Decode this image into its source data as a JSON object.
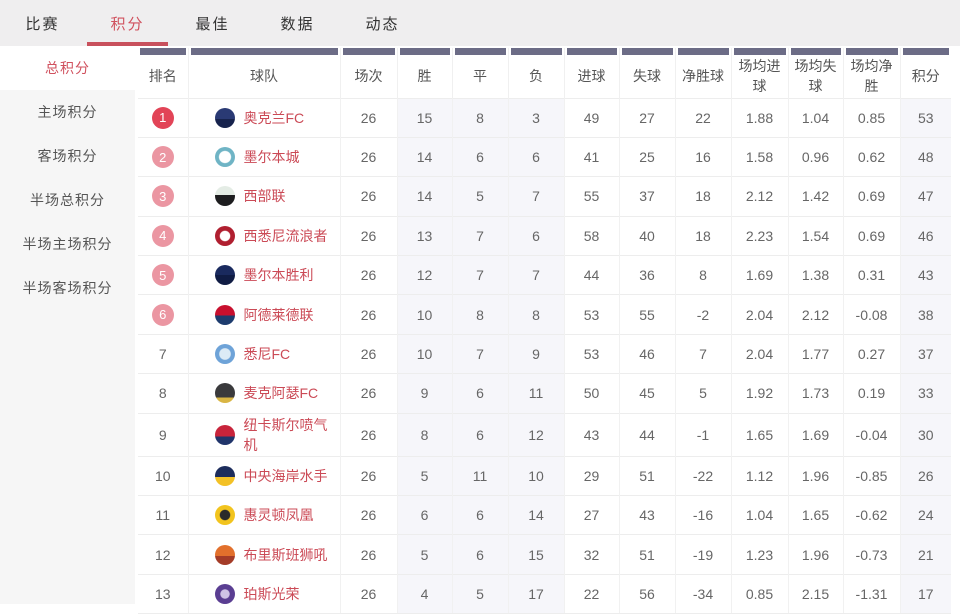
{
  "colors": {
    "accent_red": "#d0515e",
    "underline_red": "#c8505c",
    "badge_solid": "#e24457",
    "badge_light": "#eb96a2",
    "team_name_red": "#cb4a56",
    "header_bar_purple": "#6c6c86",
    "nav_bg": "#efeeef",
    "sidebar_bg": "#f6f6f6",
    "tint_column_bg": "#f6f6fa"
  },
  "nav": {
    "tabs": [
      {
        "id": "matches",
        "label": "比赛",
        "active": false
      },
      {
        "id": "standings",
        "label": "积分",
        "active": true
      },
      {
        "id": "best",
        "label": "最佳",
        "active": false
      },
      {
        "id": "stats",
        "label": "数据",
        "active": false
      },
      {
        "id": "news",
        "label": "动态",
        "active": false
      }
    ]
  },
  "sidebar": {
    "items": [
      {
        "id": "total-points",
        "label": "总积分",
        "active": true
      },
      {
        "id": "home-points",
        "label": "主场积分",
        "active": false
      },
      {
        "id": "away-points",
        "label": "客场积分",
        "active": false
      },
      {
        "id": "half-total-points",
        "label": "半场总积分",
        "active": false
      },
      {
        "id": "half-home-points",
        "label": "半场主场积分",
        "active": false
      },
      {
        "id": "half-away-points",
        "label": "半场客场积分",
        "active": false
      }
    ]
  },
  "table": {
    "columns": [
      "排名",
      "球队",
      "场次",
      "胜",
      "平",
      "负",
      "进球",
      "失球",
      "净胜球",
      "场均进球",
      "场均失球",
      "场均净胜",
      "积分"
    ],
    "rows": [
      {
        "rank": "1",
        "badge": "solid",
        "team": "奥克兰FC",
        "logo": {
          "type": "split",
          "c1": "#2a3a74",
          "c2": "#17234d",
          "pct": 55
        },
        "stats": [
          "26",
          "15",
          "8",
          "3",
          "49",
          "27",
          "22",
          "1.88",
          "1.04",
          "0.85",
          "53"
        ]
      },
      {
        "rank": "2",
        "badge": "light",
        "team": "墨尔本城",
        "logo": {
          "type": "radial",
          "c1": "#ffffff",
          "c2": "#6fb4c5",
          "pct": 40
        },
        "stats": [
          "26",
          "14",
          "6",
          "6",
          "41",
          "25",
          "16",
          "1.58",
          "0.96",
          "0.62",
          "48"
        ]
      },
      {
        "rank": "3",
        "badge": "light",
        "team": "西部联",
        "logo": {
          "type": "split",
          "c1": "#e4ece5",
          "c2": "#1d1d1f",
          "pct": 45
        },
        "stats": [
          "26",
          "14",
          "5",
          "7",
          "55",
          "37",
          "18",
          "2.12",
          "1.42",
          "0.69",
          "47"
        ]
      },
      {
        "rank": "4",
        "badge": "light",
        "team": "西悉尼流浪者",
        "logo": {
          "type": "radial",
          "c1": "#ffffff",
          "c2": "#b01f30",
          "pct": 34
        },
        "stats": [
          "26",
          "13",
          "7",
          "6",
          "58",
          "40",
          "18",
          "2.23",
          "1.54",
          "0.69",
          "46"
        ]
      },
      {
        "rank": "5",
        "badge": "light",
        "team": "墨尔本胜利",
        "logo": {
          "type": "split",
          "c1": "#1a2a5e",
          "c2": "#101c44",
          "pct": 50
        },
        "stats": [
          "26",
          "12",
          "7",
          "7",
          "44",
          "36",
          "8",
          "1.69",
          "1.38",
          "0.31",
          "43"
        ]
      },
      {
        "rank": "6",
        "badge": "light",
        "team": "阿德莱德联",
        "logo": {
          "type": "split",
          "c1": "#c8102e",
          "c2": "#1d3c6e",
          "pct": 52
        },
        "stats": [
          "26",
          "10",
          "8",
          "8",
          "53",
          "55",
          "-2",
          "2.04",
          "2.12",
          "-0.08",
          "38"
        ]
      },
      {
        "rank": "7",
        "badge": "none",
        "team": "悉尼FC",
        "logo": {
          "type": "radial",
          "c1": "#dcebf6",
          "c2": "#6ea3d8",
          "pct": 38
        },
        "stats": [
          "26",
          "10",
          "7",
          "9",
          "53",
          "46",
          "7",
          "2.04",
          "1.77",
          "0.27",
          "37"
        ]
      },
      {
        "rank": "8",
        "badge": "none",
        "team": "麦克阿瑟FC",
        "logo": {
          "type": "split",
          "c1": "#3a3a3c",
          "c2": "#d9b544",
          "pct": 72
        },
        "stats": [
          "26",
          "9",
          "6",
          "11",
          "50",
          "45",
          "5",
          "1.92",
          "1.73",
          "0.19",
          "33"
        ]
      },
      {
        "rank": "9",
        "badge": "none",
        "team": "纽卡斯尔喷气机",
        "logo": {
          "type": "split",
          "c1": "#c8243b",
          "c2": "#20356b",
          "pct": 58
        },
        "stats": [
          "26",
          "8",
          "6",
          "12",
          "43",
          "44",
          "-1",
          "1.65",
          "1.69",
          "-0.04",
          "30"
        ]
      },
      {
        "rank": "10",
        "badge": "none",
        "team": "中央海岸水手",
        "logo": {
          "type": "split",
          "c1": "#1d2d5c",
          "c2": "#f3c126",
          "pct": 56
        },
        "stats": [
          "26",
          "5",
          "11",
          "10",
          "29",
          "51",
          "-22",
          "1.12",
          "1.96",
          "-0.85",
          "26"
        ]
      },
      {
        "rank": "11",
        "badge": "none",
        "team": "惠灵顿凤凰",
        "logo": {
          "type": "radial",
          "c1": "#2a2a2a",
          "c2": "#f2c41e",
          "pct": 34
        },
        "stats": [
          "26",
          "6",
          "6",
          "14",
          "27",
          "43",
          "-16",
          "1.04",
          "1.65",
          "-0.62",
          "24"
        ]
      },
      {
        "rank": "12",
        "badge": "none",
        "team": "布里斯班狮吼",
        "logo": {
          "type": "split",
          "c1": "#e2702c",
          "c2": "#a43c28",
          "pct": 55
        },
        "stats": [
          "26",
          "5",
          "6",
          "15",
          "32",
          "51",
          "-19",
          "1.23",
          "1.96",
          "-0.73",
          "21"
        ]
      },
      {
        "rank": "13",
        "badge": "none",
        "team": "珀斯光荣",
        "logo": {
          "type": "radial",
          "c1": "#cfc3e6",
          "c2": "#5a3e92",
          "pct": 30
        },
        "stats": [
          "26",
          "4",
          "5",
          "17",
          "22",
          "56",
          "-34",
          "0.85",
          "2.15",
          "-1.31",
          "17"
        ]
      }
    ]
  }
}
